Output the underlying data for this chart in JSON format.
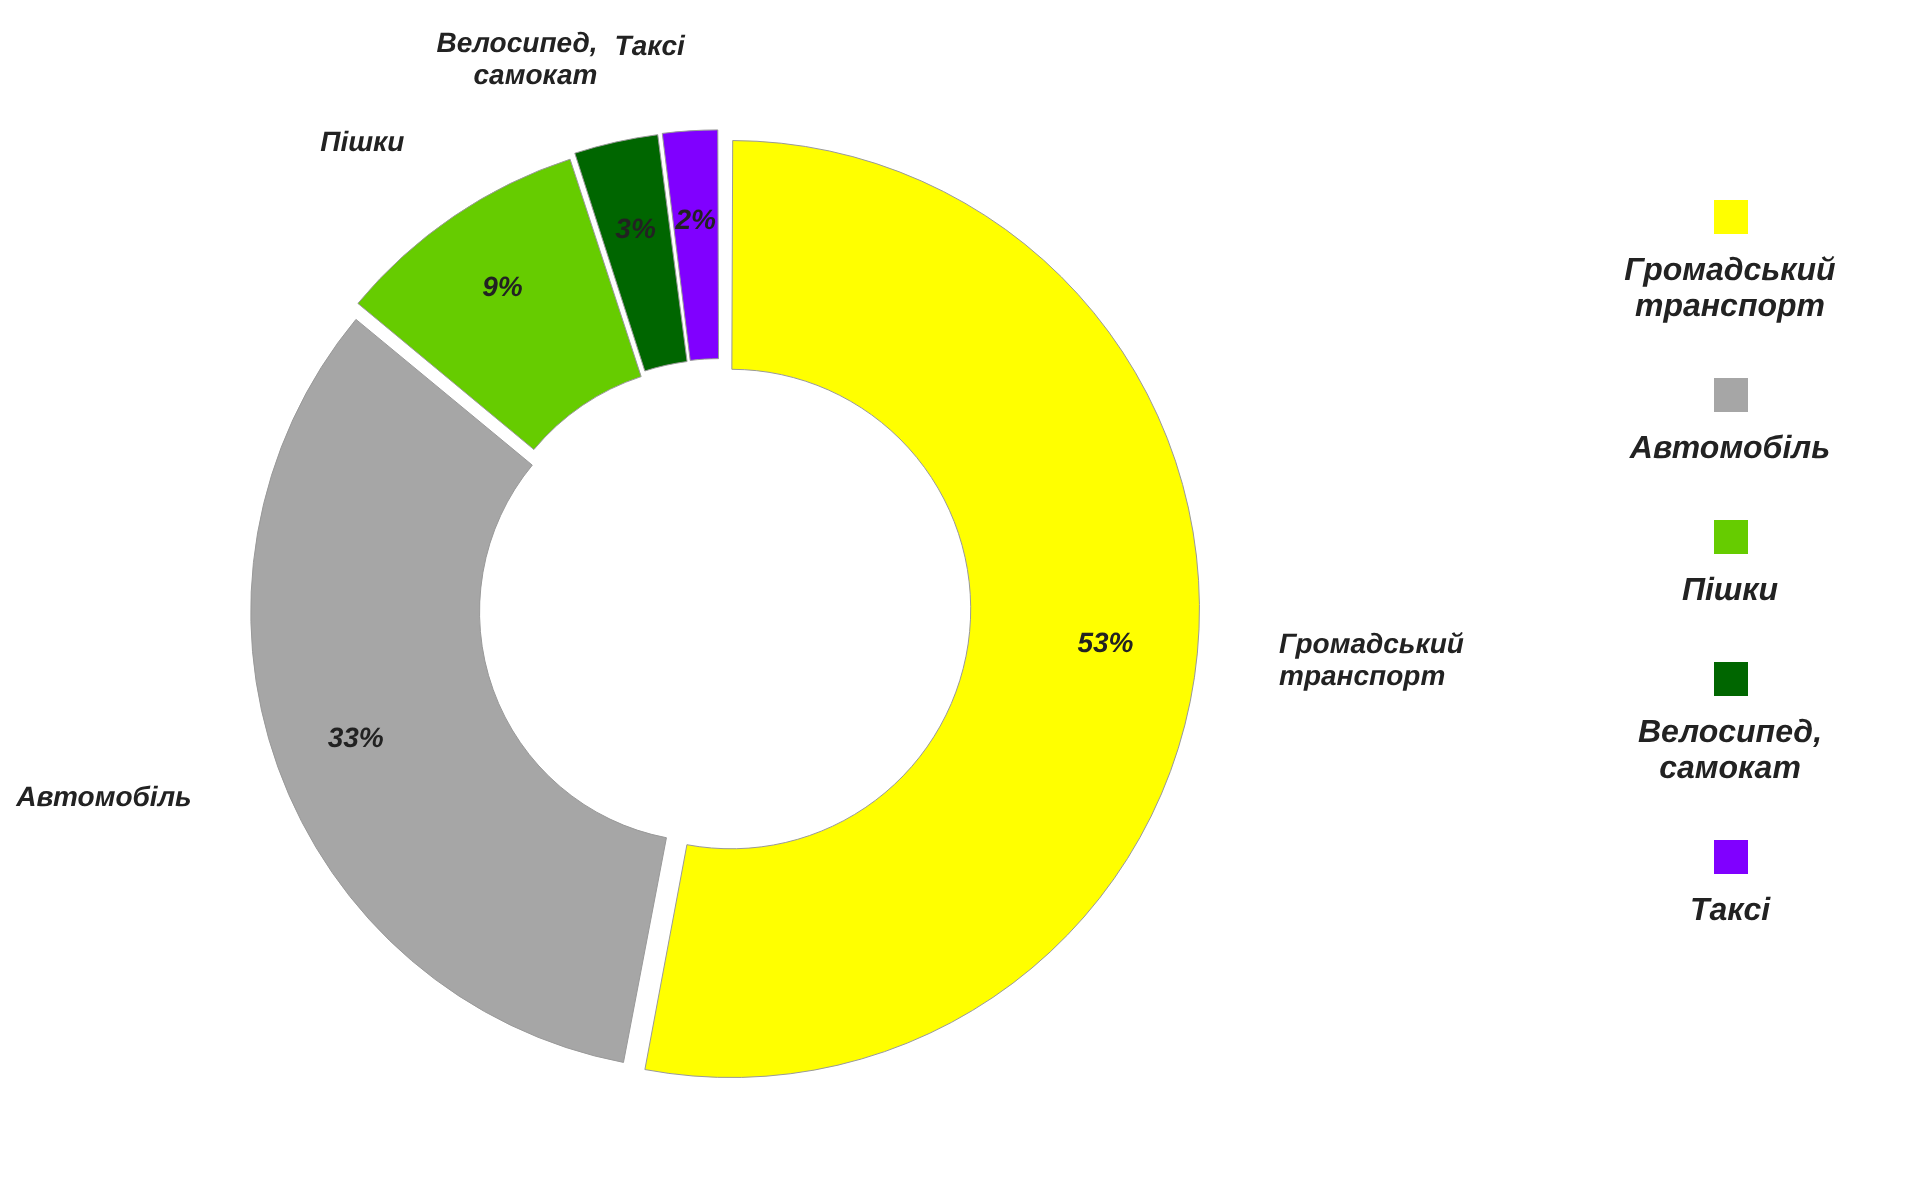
{
  "chart_data": {
    "type": "donut",
    "categories": [
      "Громадський транспорт",
      "Автомобіль",
      "Пішки",
      "Велосипед, самокат",
      "Таксі"
    ],
    "values": [
      53,
      33,
      9,
      3,
      2
    ],
    "colors": [
      "#ffff00",
      "#a6a6a6",
      "#66cc00",
      "#006600",
      "#8000ff"
    ],
    "value_labels": [
      "53%",
      "33%",
      "9%",
      "3%",
      "2%"
    ],
    "legend": "right"
  }
}
